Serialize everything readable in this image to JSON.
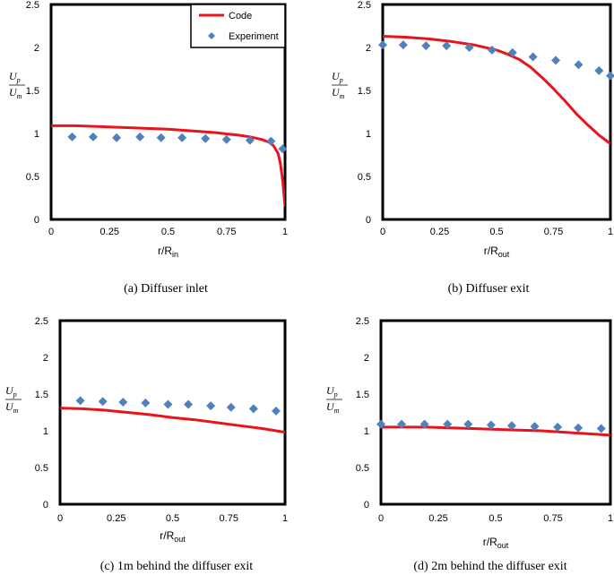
{
  "colors": {
    "code": "#e8141b",
    "experiment": "#4f81bd",
    "axis": "#000000"
  },
  "legend": {
    "code_label": "Code",
    "experiment_label": "Experiment",
    "placement": "top-right of panel (a)"
  },
  "chart_data": [
    {
      "type": "line+scatter",
      "panel": "a",
      "caption": "(a)  Diffuser inlet",
      "xlabel": "r/R",
      "xlabel_sub": "in",
      "ylabel_num": "U",
      "ylabel_num_sub": "p",
      "ylabel_den": "U",
      "ylabel_den_sub": "m",
      "xlim": [
        0,
        1
      ],
      "ylim": [
        0,
        2.5
      ],
      "xticks": [
        "0",
        "0.25",
        "0.5",
        "0.75",
        "1"
      ],
      "yticks": [
        "0",
        "0.5",
        "1",
        "1.5",
        "2",
        "2.5"
      ],
      "ytick_values": [
        0,
        0.5,
        1,
        1.5,
        2,
        2.5
      ],
      "xtick_values": [
        0,
        0.25,
        0.5,
        0.75,
        1
      ],
      "series": [
        {
          "name": "Code",
          "kind": "line",
          "x": [
            0,
            0.1,
            0.2,
            0.3,
            0.4,
            0.5,
            0.6,
            0.7,
            0.8,
            0.85,
            0.9,
            0.93,
            0.95,
            0.97,
            0.98,
            0.99,
            1.0
          ],
          "y": [
            1.09,
            1.09,
            1.08,
            1.07,
            1.06,
            1.05,
            1.03,
            1.01,
            0.98,
            0.96,
            0.93,
            0.9,
            0.86,
            0.77,
            0.65,
            0.45,
            0.15
          ]
        },
        {
          "name": "Experiment",
          "kind": "scatter",
          "x": [
            0.09,
            0.18,
            0.28,
            0.38,
            0.47,
            0.56,
            0.66,
            0.75,
            0.85,
            0.94,
            0.99
          ],
          "y": [
            0.96,
            0.96,
            0.95,
            0.96,
            0.95,
            0.95,
            0.94,
            0.93,
            0.92,
            0.91,
            0.82
          ]
        }
      ]
    },
    {
      "type": "line+scatter",
      "panel": "b",
      "caption": "(b)  Diffuser exit",
      "xlabel": "r/R",
      "xlabel_sub": "out",
      "ylabel_num": "U",
      "ylabel_num_sub": "p",
      "ylabel_den": "U",
      "ylabel_den_sub": "m",
      "xlim": [
        0,
        1
      ],
      "ylim": [
        0,
        2.5
      ],
      "xticks": [
        "0",
        "0.25",
        "0.5",
        "0.75",
        "1"
      ],
      "yticks": [
        "0",
        "0.5",
        "1",
        "1.5",
        "2",
        "2.5"
      ],
      "ytick_values": [
        0,
        0.5,
        1,
        1.5,
        2,
        2.5
      ],
      "xtick_values": [
        0,
        0.25,
        0.5,
        0.75,
        1
      ],
      "series": [
        {
          "name": "Code",
          "kind": "line",
          "x": [
            0,
            0.1,
            0.2,
            0.3,
            0.4,
            0.5,
            0.55,
            0.6,
            0.65,
            0.7,
            0.75,
            0.8,
            0.85,
            0.9,
            0.95,
            1.0
          ],
          "y": [
            2.13,
            2.12,
            2.1,
            2.07,
            2.03,
            1.97,
            1.92,
            1.86,
            1.77,
            1.65,
            1.52,
            1.38,
            1.23,
            1.1,
            0.98,
            0.88
          ]
        },
        {
          "name": "Experiment",
          "kind": "scatter",
          "x": [
            0,
            0.09,
            0.19,
            0.28,
            0.38,
            0.48,
            0.57,
            0.66,
            0.76,
            0.86,
            0.95,
            1.0
          ],
          "y": [
            2.03,
            2.03,
            2.02,
            2.02,
            2.0,
            1.97,
            1.94,
            1.89,
            1.85,
            1.8,
            1.73,
            1.67
          ]
        }
      ]
    },
    {
      "type": "line+scatter",
      "panel": "c",
      "caption": "(c)  1m behind the diffuser exit",
      "xlabel": "r/R",
      "xlabel_sub": "out",
      "ylabel_num": "U",
      "ylabel_num_sub": "p",
      "ylabel_den": "U",
      "ylabel_den_sub": "m",
      "xlim": [
        0,
        1
      ],
      "ylim": [
        0,
        2.5
      ],
      "xticks": [
        "0",
        "0.25",
        "0.5",
        "0.75",
        "1"
      ],
      "yticks": [
        "0",
        "0.5",
        "1",
        "1.5",
        "2",
        "2.5"
      ],
      "ytick_values": [
        0,
        0.5,
        1,
        1.5,
        2,
        2.5
      ],
      "xtick_values": [
        0,
        0.25,
        0.5,
        0.75,
        1
      ],
      "series": [
        {
          "name": "Code",
          "kind": "line",
          "x": [
            0,
            0.1,
            0.2,
            0.3,
            0.4,
            0.5,
            0.6,
            0.7,
            0.8,
            0.9,
            1.0
          ],
          "y": [
            1.31,
            1.3,
            1.28,
            1.25,
            1.22,
            1.18,
            1.15,
            1.11,
            1.07,
            1.03,
            0.98
          ]
        },
        {
          "name": "Experiment",
          "kind": "scatter",
          "x": [
            0.09,
            0.19,
            0.28,
            0.38,
            0.48,
            0.57,
            0.67,
            0.76,
            0.86,
            0.96
          ],
          "y": [
            1.41,
            1.4,
            1.39,
            1.38,
            1.36,
            1.36,
            1.34,
            1.32,
            1.3,
            1.27
          ]
        }
      ]
    },
    {
      "type": "line+scatter",
      "panel": "d",
      "caption": "(d)  2m behind the diffuser exit",
      "xlabel": "r/R",
      "xlabel_sub": "out",
      "ylabel_num": "U",
      "ylabel_num_sub": "p",
      "ylabel_den": "U",
      "ylabel_den_sub": "m",
      "xlim": [
        0,
        1
      ],
      "ylim": [
        0,
        2.5
      ],
      "xticks": [
        "0",
        "0.25",
        "0.5",
        "0.75",
        "1"
      ],
      "yticks": [
        "0",
        "0.5",
        "1",
        "1.5",
        "2",
        "2.5"
      ],
      "ytick_values": [
        0,
        0.5,
        1,
        1.5,
        2,
        2.5
      ],
      "xtick_values": [
        0,
        0.25,
        0.5,
        0.75,
        1
      ],
      "series": [
        {
          "name": "Code",
          "kind": "line",
          "x": [
            0,
            0.1,
            0.2,
            0.3,
            0.4,
            0.5,
            0.6,
            0.7,
            0.8,
            0.9,
            1.0
          ],
          "y": [
            1.05,
            1.05,
            1.05,
            1.04,
            1.03,
            1.02,
            1.01,
            1.0,
            0.98,
            0.96,
            0.94
          ]
        },
        {
          "name": "Experiment",
          "kind": "scatter",
          "x": [
            0,
            0.09,
            0.19,
            0.29,
            0.38,
            0.48,
            0.57,
            0.67,
            0.77,
            0.86,
            0.96
          ],
          "y": [
            1.09,
            1.09,
            1.09,
            1.09,
            1.09,
            1.08,
            1.07,
            1.06,
            1.05,
            1.04,
            1.03
          ]
        }
      ]
    }
  ]
}
